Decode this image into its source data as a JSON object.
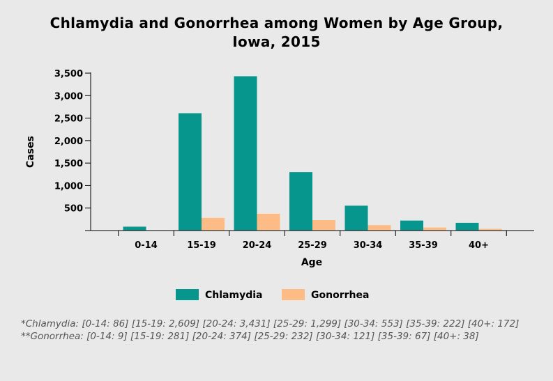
{
  "chart_data": {
    "type": "bar",
    "title": "Chlamydia and Gonorrhea among Women by Age Group, Iowa, 2015",
    "xlabel": "Age",
    "ylabel": "Cases",
    "ylim": [
      0,
      3500
    ],
    "yticks": [
      "3,500",
      "3,000",
      "2,500",
      "2,000",
      "1,500",
      "1,000",
      "500"
    ],
    "ytick_values": [
      3500,
      3000,
      2500,
      2000,
      1500,
      1000,
      500
    ],
    "categories": [
      "0-14",
      "15-19",
      "20-24",
      "25-29",
      "30-34",
      "35-39",
      "40+"
    ],
    "series": [
      {
        "name": "Chlamydia",
        "color": "#07968e",
        "values": [
          86,
          2609,
          3431,
          1299,
          553,
          222,
          172
        ]
      },
      {
        "name": "Gonorrhea",
        "color": "#fdbc85",
        "values": [
          9,
          281,
          374,
          232,
          121,
          67,
          38
        ]
      }
    ],
    "legend_position": "bottom",
    "grid": false
  },
  "footnotes": [
    "*Chlamydia: [0-14: 86] [15-19: 2,609] [20-24: 3,431] [25-29: 1,299] [30-34: 553] [35-39: 222] [40+: 172]",
    "**Gonorrhea: [0-14: 9] [15-19: 281] [20-24: 374] [25-29: 232] [30-34: 121] [35-39: 67] [40+: 38]"
  ]
}
